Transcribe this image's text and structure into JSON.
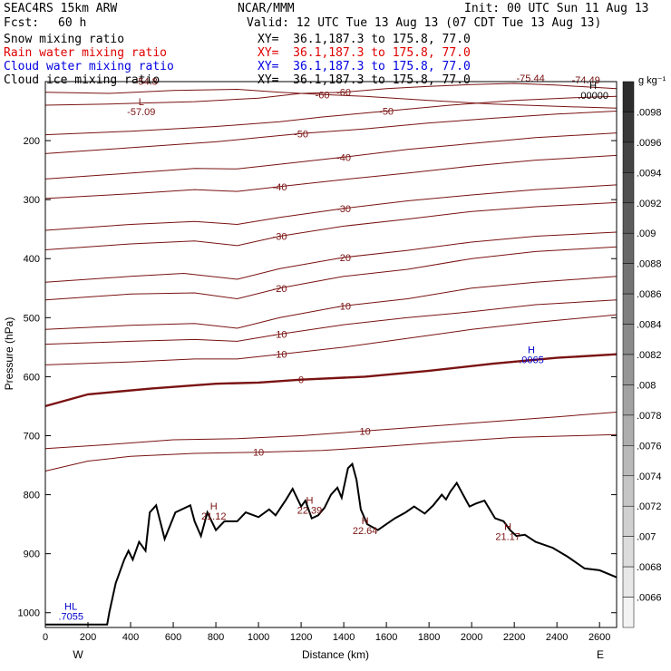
{
  "header": {
    "model": "SEAC4RS 15km ARW",
    "org": "NCAR/MMM",
    "init": "Init: 00 UTC Sun 11 Aug 13",
    "fcst_label": "Fcst:",
    "fcst_value": "60 h",
    "valid": "Valid: 12 UTC Tue 13 Aug 13 (07 CDT Tue 13 Aug 13)"
  },
  "fields": [
    {
      "name": "Snow mixing ratio",
      "color": "#000000",
      "xy": "XY=  36.1,187.3 to 175.8, 77.0"
    },
    {
      "name": "Rain water mixing ratio",
      "color": "#e00000",
      "xy": "XY=  36.1,187.3 to 175.8, 77.0"
    },
    {
      "name": "Cloud water mixing ratio",
      "color": "#0000e0",
      "xy": "XY=  36.1,187.3 to 175.8, 77.0"
    },
    {
      "name": "Cloud ice mixing ratio",
      "color": "#000000",
      "xy": "XY=  36.1,187.3 to 175.8, 77.0"
    }
  ],
  "chart_data": {
    "type": "line",
    "xlabel": "Distance (km)",
    "ylabel": "Pressure (hPa)",
    "xlim": [
      0,
      2680
    ],
    "ylim": [
      1025,
      100
    ],
    "x_ticks": [
      0,
      200,
      400,
      600,
      800,
      1000,
      1200,
      1400,
      1600,
      1800,
      2000,
      2200,
      2400,
      2600
    ],
    "y_ticks": [
      200,
      300,
      400,
      500,
      600,
      700,
      800,
      900,
      1000
    ],
    "y_tick_labels": [
      "200",
      "300",
      "400",
      "500",
      "600",
      "700",
      "800",
      "900",
      "1000"
    ],
    "end_labels": {
      "left": "W",
      "right": "E"
    },
    "colorbar": {
      "unit": "g kg⁻¹",
      "ticks": [
        ".0098",
        ".0096",
        ".0094",
        ".0092",
        ".009",
        ".0088",
        ".0086",
        ".0084",
        ".0082",
        ".008",
        ".0078",
        ".0076",
        ".0074",
        ".0072",
        ".007",
        ".0068",
        ".0066"
      ]
    },
    "terrain": [
      [
        0,
        1020
      ],
      [
        290,
        1020
      ],
      [
        300,
        1000
      ],
      [
        330,
        950
      ],
      [
        370,
        910
      ],
      [
        390,
        895
      ],
      [
        410,
        910
      ],
      [
        440,
        880
      ],
      [
        470,
        895
      ],
      [
        490,
        830
      ],
      [
        520,
        818
      ],
      [
        560,
        875
      ],
      [
        610,
        830
      ],
      [
        680,
        818
      ],
      [
        700,
        845
      ],
      [
        730,
        870
      ],
      [
        760,
        830
      ],
      [
        800,
        860
      ],
      [
        840,
        845
      ],
      [
        900,
        845
      ],
      [
        940,
        830
      ],
      [
        1000,
        838
      ],
      [
        1050,
        825
      ],
      [
        1080,
        835
      ],
      [
        1130,
        808
      ],
      [
        1160,
        790
      ],
      [
        1200,
        820
      ],
      [
        1220,
        810
      ],
      [
        1250,
        840
      ],
      [
        1280,
        835
      ],
      [
        1310,
        822
      ],
      [
        1340,
        800
      ],
      [
        1370,
        788
      ],
      [
        1390,
        805
      ],
      [
        1420,
        755
      ],
      [
        1440,
        748
      ],
      [
        1460,
        775
      ],
      [
        1480,
        825
      ],
      [
        1510,
        850
      ],
      [
        1560,
        860
      ],
      [
        1600,
        850
      ],
      [
        1640,
        840
      ],
      [
        1690,
        830
      ],
      [
        1730,
        820
      ],
      [
        1780,
        832
      ],
      [
        1820,
        818
      ],
      [
        1860,
        800
      ],
      [
        1880,
        808
      ],
      [
        1900,
        795
      ],
      [
        1930,
        780
      ],
      [
        1960,
        800
      ],
      [
        1990,
        820
      ],
      [
        2020,
        815
      ],
      [
        2060,
        810
      ],
      [
        2110,
        840
      ],
      [
        2150,
        845
      ],
      [
        2180,
        860
      ],
      [
        2210,
        870
      ],
      [
        2250,
        868
      ],
      [
        2300,
        880
      ],
      [
        2380,
        890
      ],
      [
        2450,
        905
      ],
      [
        2530,
        925
      ],
      [
        2600,
        928
      ],
      [
        2680,
        940
      ]
    ],
    "temperature_contours": [
      {
        "label": "-60",
        "points": [
          [
            0,
            118
          ],
          [
            300,
            120
          ],
          [
            600,
            115
          ],
          [
            900,
            113
          ],
          [
            1100,
            118
          ],
          [
            1300,
            122
          ],
          [
            1500,
            125
          ],
          [
            1800,
            132
          ],
          [
            2100,
            138
          ],
          [
            2400,
            142
          ],
          [
            2680,
            145
          ]
        ]
      },
      {
        "label": "-60",
        "points": [
          [
            0,
            140
          ],
          [
            300,
            138
          ],
          [
            700,
            134
          ],
          [
            1000,
            128
          ],
          [
            1200,
            120
          ],
          [
            1400,
            118
          ],
          [
            1600,
            112
          ],
          [
            1800,
            108
          ],
          [
            2000,
            105
          ],
          [
            2200,
            103
          ],
          [
            2400,
            106
          ],
          [
            2680,
            112
          ]
        ]
      },
      {
        "label": "-50",
        "points": [
          [
            0,
            190
          ],
          [
            400,
            184
          ],
          [
            800,
            176
          ],
          [
            1100,
            168
          ],
          [
            1300,
            160
          ],
          [
            1600,
            150
          ],
          [
            1900,
            140
          ],
          [
            2200,
            132
          ],
          [
            2500,
            127
          ],
          [
            2680,
            125
          ]
        ]
      },
      {
        "label": "-50",
        "points": [
          [
            0,
            222
          ],
          [
            400,
            212
          ],
          [
            800,
            202
          ],
          [
            1000,
            195
          ],
          [
            1200,
            188
          ],
          [
            1500,
            180
          ],
          [
            1800,
            170
          ],
          [
            2100,
            162
          ],
          [
            2400,
            155
          ],
          [
            2680,
            150
          ]
        ]
      },
      {
        "label": "-40",
        "points": [
          [
            0,
            265
          ],
          [
            400,
            255
          ],
          [
            700,
            247
          ],
          [
            900,
            248
          ],
          [
            1100,
            240
          ],
          [
            1400,
            228
          ],
          [
            1700,
            215
          ],
          [
            2000,
            205
          ],
          [
            2300,
            195
          ],
          [
            2680,
            187
          ]
        ]
      },
      {
        "label": "-40",
        "points": [
          [
            0,
            298
          ],
          [
            400,
            290
          ],
          [
            700,
            283
          ],
          [
            900,
            286
          ],
          [
            1100,
            278
          ],
          [
            1400,
            266
          ],
          [
            1700,
            255
          ],
          [
            2000,
            243
          ],
          [
            2300,
            233
          ],
          [
            2680,
            225
          ]
        ]
      },
      {
        "label": "-30",
        "points": [
          [
            0,
            352
          ],
          [
            400,
            342
          ],
          [
            700,
            337
          ],
          [
            900,
            342
          ],
          [
            1100,
            330
          ],
          [
            1400,
            315
          ],
          [
            1700,
            302
          ],
          [
            2000,
            292
          ],
          [
            2300,
            283
          ],
          [
            2680,
            275
          ]
        ]
      },
      {
        "label": "-30",
        "points": [
          [
            0,
            385
          ],
          [
            400,
            375
          ],
          [
            700,
            370
          ],
          [
            900,
            378
          ],
          [
            1100,
            362
          ],
          [
            1400,
            345
          ],
          [
            1700,
            333
          ],
          [
            2000,
            320
          ],
          [
            2300,
            312
          ],
          [
            2680,
            305
          ]
        ]
      },
      {
        "label": "-20",
        "points": [
          [
            0,
            440
          ],
          [
            400,
            430
          ],
          [
            650,
            425
          ],
          [
            900,
            435
          ],
          [
            1100,
            417
          ],
          [
            1400,
            398
          ],
          [
            1700,
            386
          ],
          [
            2000,
            372
          ],
          [
            2300,
            362
          ],
          [
            2680,
            355
          ]
        ]
      },
      {
        "label": "-20",
        "points": [
          [
            0,
            470
          ],
          [
            400,
            460
          ],
          [
            700,
            458
          ],
          [
            900,
            468
          ],
          [
            1100,
            450
          ],
          [
            1400,
            430
          ],
          [
            1700,
            418
          ],
          [
            2000,
            400
          ],
          [
            2300,
            388
          ],
          [
            2680,
            380
          ]
        ]
      },
      {
        "label": "-10",
        "points": [
          [
            0,
            520
          ],
          [
            400,
            513
          ],
          [
            700,
            510
          ],
          [
            900,
            518
          ],
          [
            1100,
            500
          ],
          [
            1400,
            480
          ],
          [
            1700,
            468
          ],
          [
            2000,
            450
          ],
          [
            2300,
            440
          ],
          [
            2680,
            430
          ]
        ]
      },
      {
        "label": "-10",
        "points": [
          [
            0,
            545
          ],
          [
            400,
            540
          ],
          [
            700,
            537
          ],
          [
            900,
            540
          ],
          [
            1100,
            528
          ],
          [
            1400,
            512
          ],
          [
            1700,
            500
          ],
          [
            2000,
            490
          ],
          [
            2300,
            478
          ],
          [
            2680,
            470
          ]
        ]
      },
      {
        "label": "0",
        "bold": true,
        "points": [
          [
            0,
            650
          ],
          [
            200,
            630
          ],
          [
            500,
            620
          ],
          [
            800,
            612
          ],
          [
            1000,
            610
          ],
          [
            1200,
            605
          ],
          [
            1500,
            600
          ],
          [
            1800,
            590
          ],
          [
            2100,
            578
          ],
          [
            2400,
            568
          ],
          [
            2680,
            562
          ]
        ]
      },
      {
        "label": "-10",
        "points": [
          [
            0,
            580
          ],
          [
            400,
            575
          ],
          [
            700,
            570
          ],
          [
            900,
            570
          ],
          [
            1100,
            562
          ],
          [
            1400,
            550
          ],
          [
            1700,
            535
          ],
          [
            2000,
            520
          ],
          [
            2300,
            508
          ],
          [
            2680,
            495
          ]
        ]
      },
      {
        "label": "10",
        "points": [
          [
            0,
            722
          ],
          [
            300,
            715
          ],
          [
            600,
            707
          ],
          [
            900,
            705
          ],
          [
            1200,
            700
          ],
          [
            1500,
            692
          ],
          [
            1800,
            684
          ],
          [
            2100,
            676
          ],
          [
            2400,
            668
          ],
          [
            2680,
            660
          ]
        ]
      },
      {
        "label": "10",
        "points": [
          [
            0,
            760
          ],
          [
            200,
            743
          ],
          [
            400,
            735
          ],
          [
            700,
            730
          ],
          [
            1000,
            728
          ],
          [
            1300,
            725
          ],
          [
            1600,
            718
          ],
          [
            1900,
            710
          ],
          [
            2200,
            703
          ],
          [
            2500,
            700
          ],
          [
            2680,
            698
          ]
        ]
      }
    ],
    "max_markers": [
      {
        "type": "L",
        "value": "-57.09",
        "x": 450,
        "y": 140,
        "color": "#7a1212"
      },
      {
        "type": "H",
        "value": "21.12",
        "x": 790,
        "y": 825,
        "color": "#7a1212"
      },
      {
        "type": "H",
        "value": "22.39",
        "x": 1240,
        "y": 815,
        "color": "#7a1212"
      },
      {
        "type": "H",
        "value": "22.64",
        "x": 1500,
        "y": 850,
        "color": "#7a1212"
      },
      {
        "type": "H",
        "value": "21.17",
        "x": 2170,
        "y": 860,
        "color": "#7a1212"
      },
      {
        "type": "H",
        "value": ".0065",
        "x": 2280,
        "y": 560,
        "color": "#0000cc"
      },
      {
        "type": "H",
        "value": ".00000",
        "x": 2570,
        "y": 112,
        "color": "#000000"
      },
      {
        "type": "HL",
        "value": ".7055",
        "x": 120,
        "y": 995,
        "color": "#0000cc"
      }
    ],
    "min_labels": [
      {
        "value": "-54.8",
        "x": 420,
        "y": 105
      },
      {
        "value": "-75.44",
        "x": 2210,
        "y": 100
      },
      {
        "value": "-74.49",
        "x": 2470,
        "y": 103
      }
    ]
  }
}
